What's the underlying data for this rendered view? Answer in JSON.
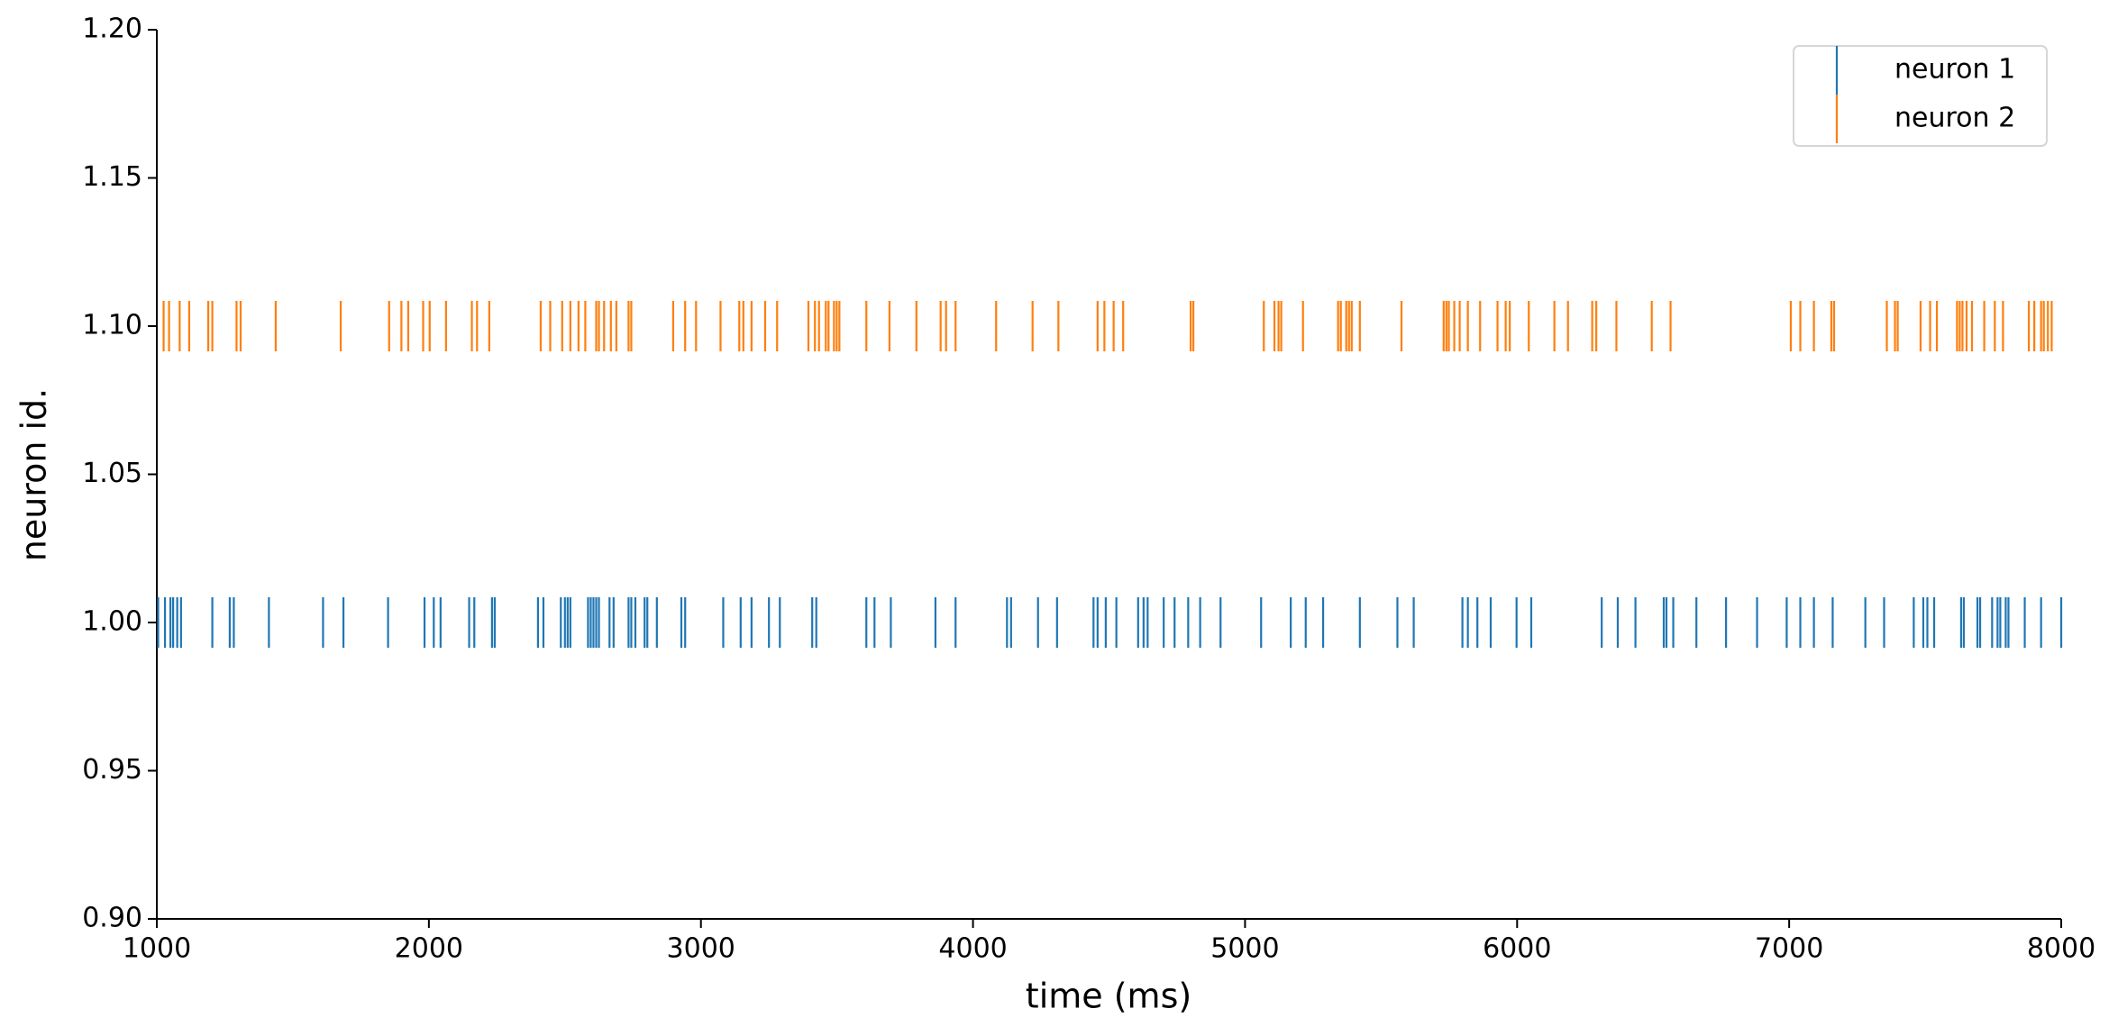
{
  "chart_data": {
    "type": "raster",
    "xlabel": "time (ms)",
    "ylabel": "neuron id.",
    "xlim": [
      1000,
      8000
    ],
    "xticks": [
      1000,
      2000,
      3000,
      4000,
      5000,
      6000,
      7000,
      8000
    ],
    "ylim": [
      0.9,
      1.2
    ],
    "yticks": [
      {
        "value": 0.9,
        "label": "0.90"
      },
      0.95,
      {
        "value": 1.0,
        "label": "1.00"
      },
      1.05,
      {
        "value": 1.1,
        "label": "1.10"
      },
      1.15,
      {
        "value": 1.2,
        "label": "1.20"
      }
    ],
    "legend": "upper right",
    "series": [
      {
        "name": "neuron 1",
        "color": "#1f77b4",
        "y": 1.0,
        "x": [
          1005,
          1030,
          1050,
          1060,
          1075,
          1089,
          1204,
          1268,
          1283,
          1412,
          1611,
          1686,
          1850,
          1984,
          2018,
          2043,
          2148,
          2167,
          2232,
          2242,
          2401,
          2421,
          2485,
          2500,
          2510,
          2520,
          2585,
          2595,
          2605,
          2615,
          2625,
          2664,
          2679,
          2734,
          2744,
          2759,
          2793,
          2803,
          2838,
          2928,
          2942,
          3082,
          3146,
          3186,
          3250,
          3290,
          3409,
          3424,
          3608,
          3638,
          3698,
          3862,
          3936,
          4125,
          4140,
          4239,
          4309,
          4443,
          4458,
          4488,
          4527,
          4607,
          4627,
          4642,
          4701,
          4741,
          4791,
          4835,
          4910,
          5059,
          5168,
          5223,
          5287,
          5422,
          5560,
          5620,
          5799,
          5819,
          5854,
          5903,
          5998,
          6052,
          6311,
          6370,
          6435,
          6539,
          6549,
          6574,
          6659,
          6768,
          6882,
          6991,
          7041,
          7091,
          7160,
          7280,
          7349,
          7458,
          7493,
          7508,
          7533,
          7632,
          7642,
          7692,
          7702,
          7746,
          7766,
          7776,
          7796,
          7806,
          7866,
          7926,
          8000
        ]
      },
      {
        "name": "neuron 2",
        "color": "#ff7f0e",
        "y": 1.1,
        "x": [
          1025,
          1045,
          1084,
          1119,
          1189,
          1204,
          1293,
          1308,
          1437,
          1676,
          1854,
          1899,
          1924,
          1979,
          2003,
          2063,
          2158,
          2177,
          2222,
          2411,
          2446,
          2490,
          2520,
          2550,
          2575,
          2615,
          2625,
          2644,
          2669,
          2689,
          2734,
          2744,
          2898,
          2942,
          2982,
          3072,
          3141,
          3156,
          3186,
          3236,
          3280,
          3395,
          3419,
          3434,
          3459,
          3469,
          3489,
          3499,
          3509,
          3608,
          3693,
          3792,
          3881,
          3901,
          3936,
          4085,
          4219,
          4314,
          4458,
          4483,
          4517,
          4552,
          4800,
          4810,
          5069,
          5108,
          5123,
          5133,
          5213,
          5342,
          5352,
          5372,
          5382,
          5392,
          5422,
          5575,
          5730,
          5740,
          5749,
          5769,
          5789,
          5819,
          5864,
          5928,
          5958,
          5973,
          6043,
          6137,
          6187,
          6276,
          6291,
          6365,
          6495,
          6564,
          7006,
          7041,
          7091,
          7155,
          7165,
          7359,
          7389,
          7399,
          7483,
          7518,
          7543,
          7617,
          7627,
          7637,
          7652,
          7672,
          7717,
          7756,
          7786,
          7881,
          7901,
          7926,
          7936,
          7951,
          7965
        ]
      }
    ]
  }
}
